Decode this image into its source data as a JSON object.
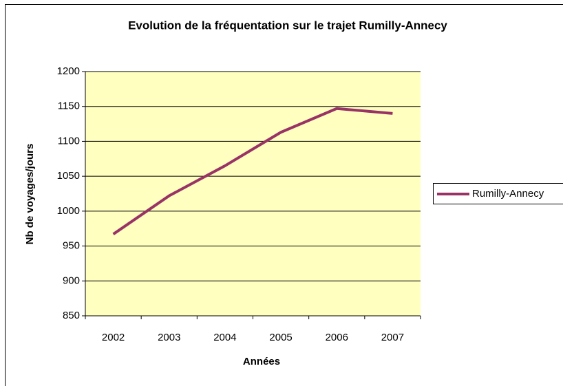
{
  "chart_data": {
    "type": "line",
    "title": "Evolution de la fréquentation sur le trajet Rumilly-Annecy",
    "x_label": "Années",
    "y_label": "Nb de voyages/jours",
    "categories": [
      "2002",
      "2003",
      "2004",
      "2005",
      "2006",
      "2007"
    ],
    "series": [
      {
        "name": "Rumilly-Annecy",
        "color": "#993366",
        "values": [
          967,
          1022,
          1065,
          1113,
          1147,
          1140
        ]
      }
    ],
    "ylim": [
      850,
      1200
    ],
    "yticks": [
      850,
      900,
      950,
      1000,
      1050,
      1100,
      1150,
      1200
    ],
    "grid": true,
    "legend": "right",
    "plot_background": "#ffffc0"
  }
}
